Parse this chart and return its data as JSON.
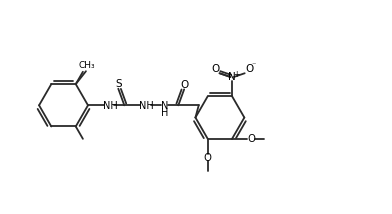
{
  "background": "#ffffff",
  "line_color": "#2a2a2a",
  "line_width": 1.3,
  "font_size": 7.0,
  "figure_width": 3.92,
  "figure_height": 2.14,
  "dpi": 100,
  "xlim": [
    0,
    11.5
  ],
  "ylim": [
    0,
    6.0
  ]
}
